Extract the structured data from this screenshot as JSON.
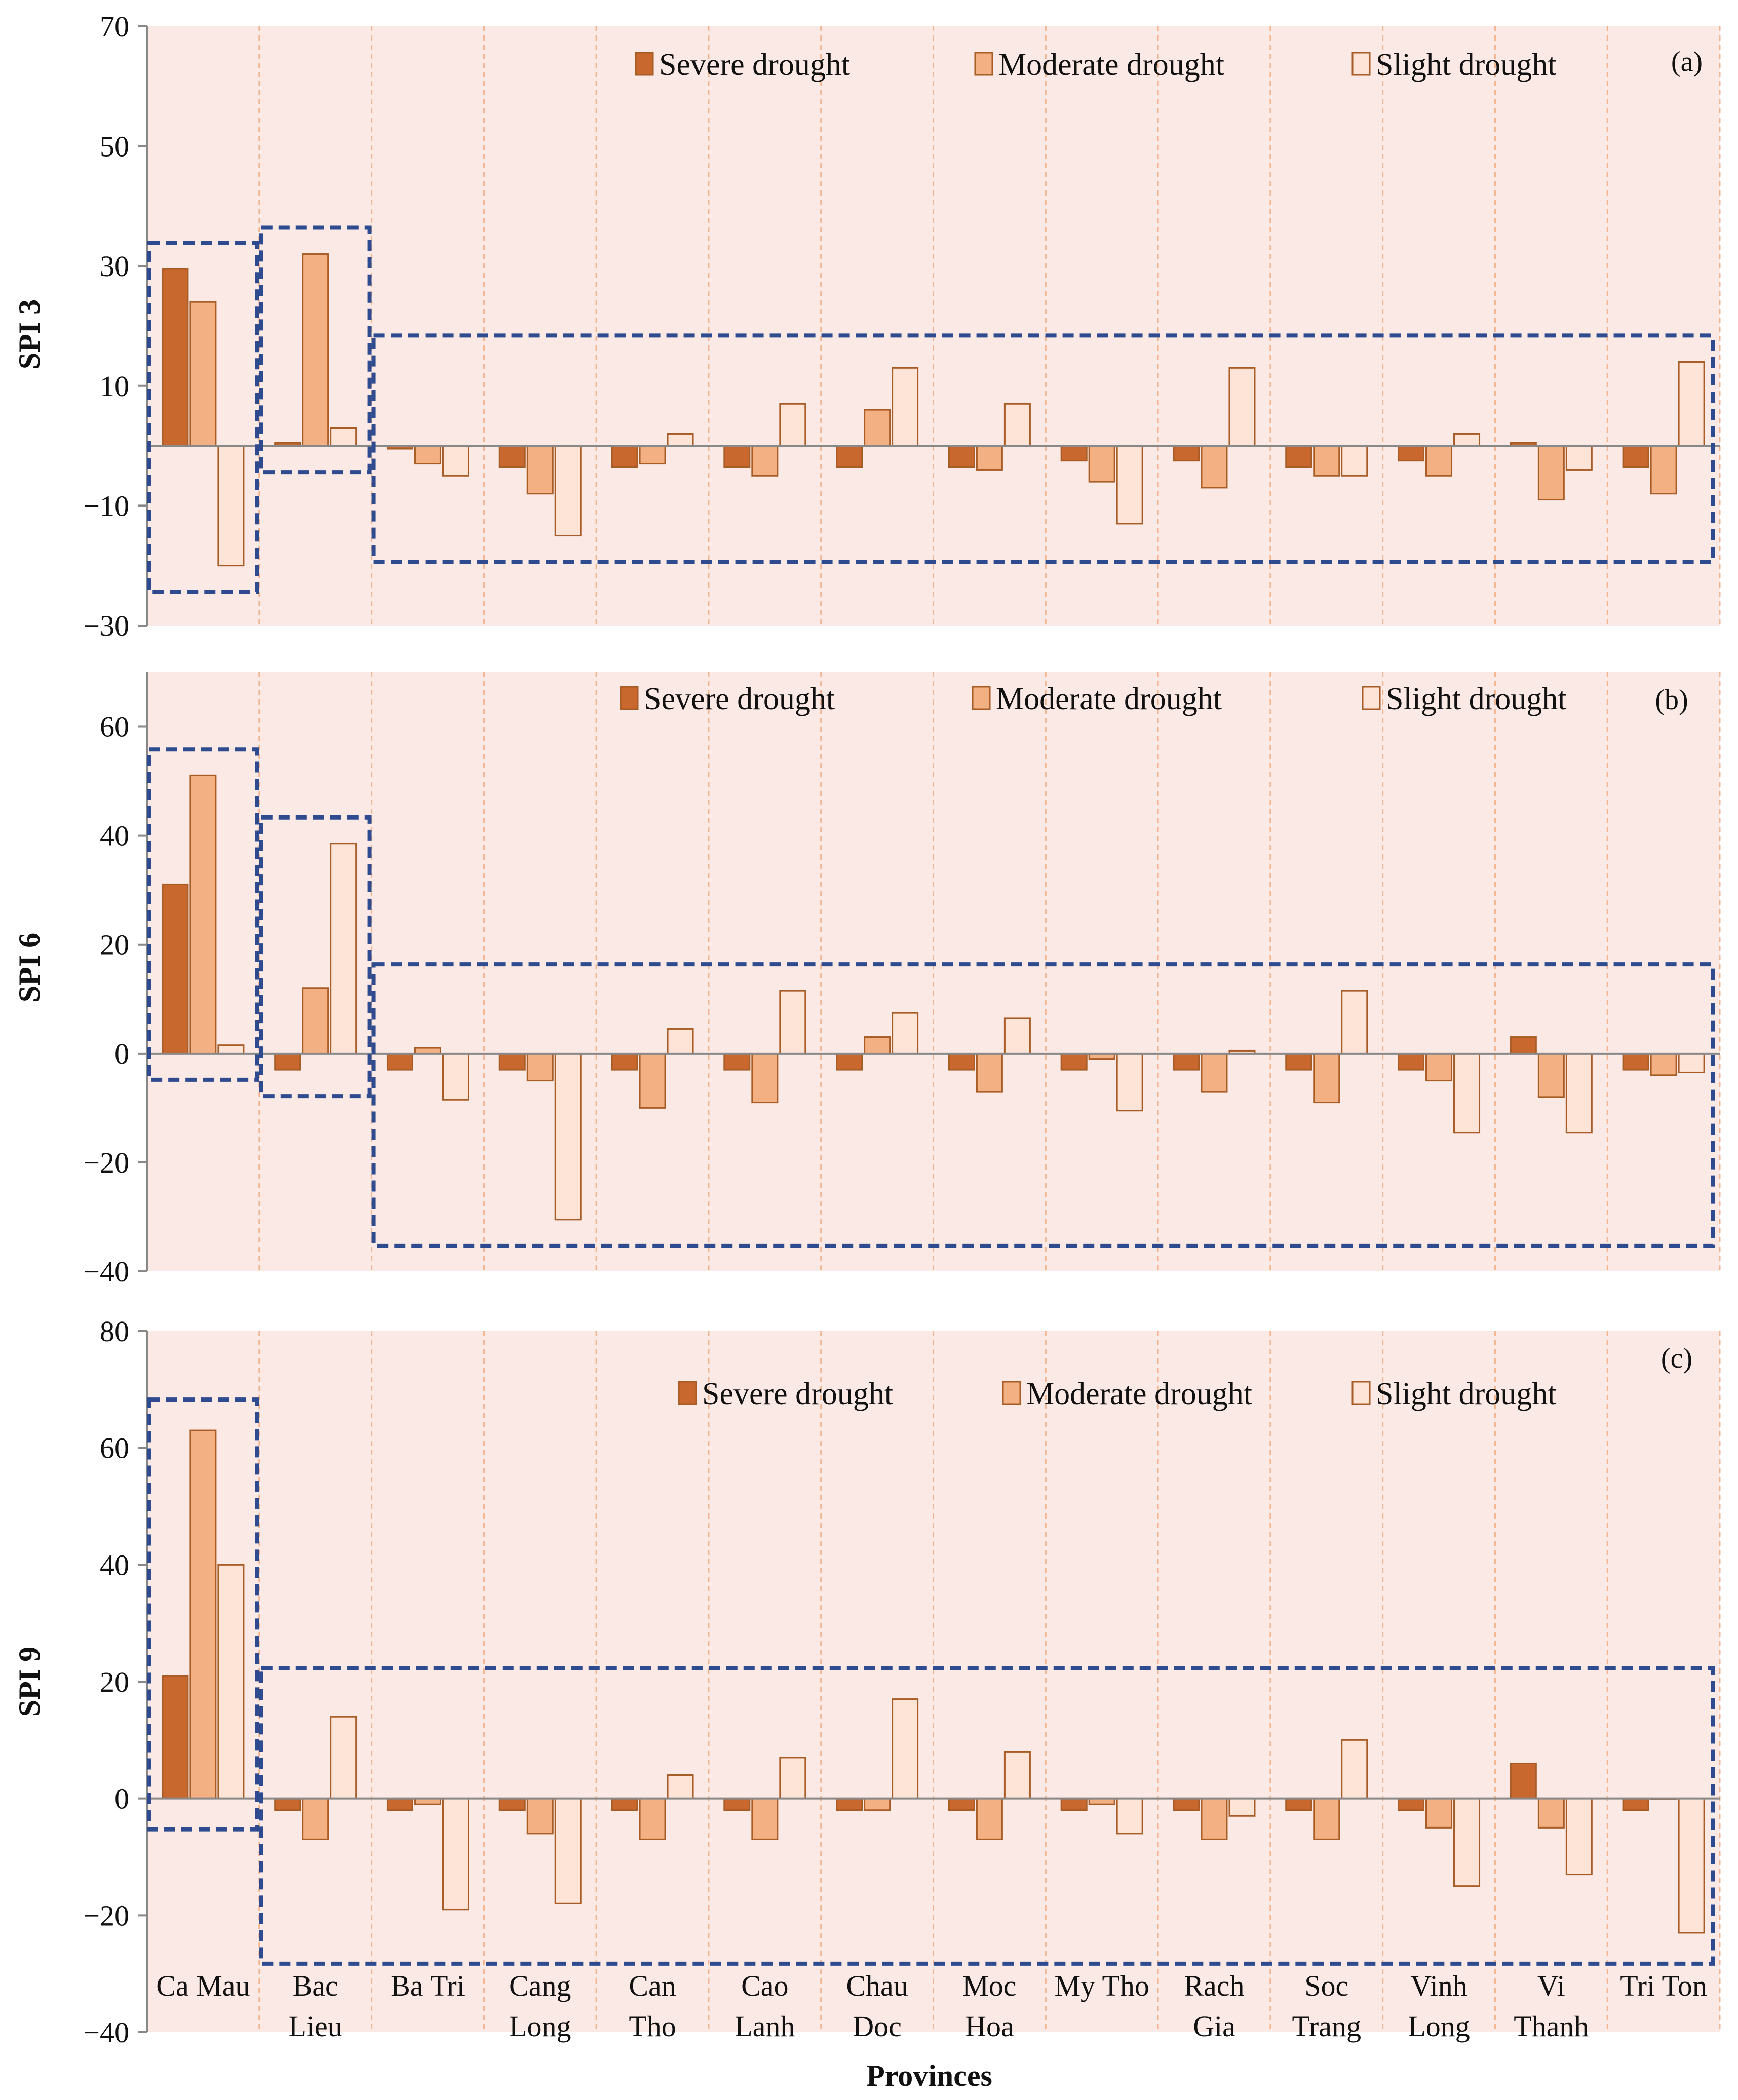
{
  "colors": {
    "plot_bg": "#fbe9e5",
    "severe": "#c8672e",
    "moderate": "#f3b083",
    "slight": "#fde4d7",
    "bar_stroke": "#a85c26",
    "highlight_box": "#2e4b8f",
    "separator": "#f3b58f",
    "axis": "#888888"
  },
  "x_axis_title": "Provinces",
  "provinces": [
    [
      "Ca Mau"
    ],
    [
      "Bac",
      "Lieu"
    ],
    [
      "Ba Tri"
    ],
    [
      "Cang",
      "Long"
    ],
    [
      "Can",
      "Tho"
    ],
    [
      "Cao",
      "Lanh"
    ],
    [
      "Chau",
      "Doc"
    ],
    [
      "Moc",
      "Hoa"
    ],
    [
      "My Tho"
    ],
    [
      "Rach",
      "Gia"
    ],
    [
      "Soc",
      "Trang"
    ],
    [
      "Vinh",
      "Long"
    ],
    [
      "Vi",
      "Thanh"
    ],
    [
      "Tri Ton"
    ]
  ],
  "chart_data": [
    {
      "type": "bar",
      "panel_label": "(a)",
      "ylabel": "SPI 3",
      "ylim": [
        -30,
        70
      ],
      "yticks": [
        -30,
        -10,
        10,
        30,
        50,
        70
      ],
      "categories": [
        "Ca Mau",
        "Bac Lieu",
        "Ba Tri",
        "Cang Long",
        "Can Tho",
        "Cao Lanh",
        "Chau Doc",
        "Moc Hoa",
        "My Tho",
        "Rach Gia",
        "Soc Trang",
        "Vinh Long",
        "Vi Thanh",
        "Tri Ton"
      ],
      "series": [
        {
          "name": "Severe drought",
          "values": [
            29.5,
            0.5,
            -0.5,
            -3.5,
            -3.5,
            -3.5,
            -3.5,
            -3.5,
            -2.5,
            -2.5,
            -3.5,
            -2.5,
            0.5,
            -3.5
          ]
        },
        {
          "name": "Moderate drought",
          "values": [
            24,
            32,
            -3,
            -8,
            -3,
            -5,
            6,
            -4,
            -6,
            -7,
            -5,
            -5,
            -9,
            -8
          ]
        },
        {
          "name": "Slight drought",
          "values": [
            -20,
            3,
            -5,
            -15,
            2,
            7,
            13,
            7,
            -13,
            13,
            -5,
            2,
            -4,
            14
          ]
        }
      ],
      "highlight_groups": [
        [
          0,
          0
        ],
        [
          1,
          1
        ],
        [
          2,
          13
        ]
      ]
    },
    {
      "type": "bar",
      "panel_label": "(b)",
      "ylabel": "SPI 6",
      "ylim": [
        -40,
        70
      ],
      "yticks": [
        -40,
        -20,
        0,
        20,
        40,
        60
      ],
      "categories": [
        "Ca Mau",
        "Bac Lieu",
        "Ba Tri",
        "Cang Long",
        "Can Tho",
        "Cao Lanh",
        "Chau Doc",
        "Moc Hoa",
        "My Tho",
        "Rach Gia",
        "Soc Trang",
        "Vinh Long",
        "Vi Thanh",
        "Tri Ton"
      ],
      "series": [
        {
          "name": "Severe drought",
          "values": [
            31,
            -3,
            -3,
            -3,
            -3,
            -3,
            -3,
            -3,
            -3,
            -3,
            -3,
            -3,
            3,
            -3
          ]
        },
        {
          "name": "Moderate drought",
          "values": [
            51,
            12,
            1,
            -5,
            -10,
            -9,
            3,
            -7,
            -1,
            -7,
            -9,
            -5,
            -8,
            -4
          ]
        },
        {
          "name": "Slight drought",
          "values": [
            1.5,
            38.5,
            -8.5,
            -30.5,
            4.5,
            11.5,
            7.5,
            6.5,
            -10.5,
            0.5,
            11.5,
            -14.5,
            -14.5,
            -3.5
          ]
        }
      ],
      "highlight_groups": [
        [
          0,
          0
        ],
        [
          1,
          1
        ],
        [
          2,
          13
        ]
      ]
    },
    {
      "type": "bar",
      "panel_label": "(c)",
      "ylabel": "SPI 9",
      "ylim": [
        -40,
        80
      ],
      "yticks": [
        -40,
        -20,
        0,
        20,
        40,
        60,
        80
      ],
      "categories": [
        "Ca Mau",
        "Bac Lieu",
        "Ba Tri",
        "Cang Long",
        "Can Tho",
        "Cao Lanh",
        "Chau Doc",
        "Moc Hoa",
        "My Tho",
        "Rach Gia",
        "Soc Trang",
        "Vinh Long",
        "Vi Thanh",
        "Tri Ton"
      ],
      "series": [
        {
          "name": "Severe drought",
          "values": [
            21,
            -2,
            -2,
            -2,
            -2,
            -2,
            -2,
            -2,
            -2,
            -2,
            -2,
            -2,
            6,
            -2
          ]
        },
        {
          "name": "Moderate drought",
          "values": [
            63,
            -7,
            -1,
            -6,
            -7,
            -7,
            -2,
            -7,
            -1,
            -7,
            -7,
            -5,
            -5,
            0
          ]
        },
        {
          "name": "Slight drought",
          "values": [
            40,
            14,
            -19,
            -18,
            4,
            7,
            17,
            8,
            -6,
            -3,
            10,
            -15,
            -13,
            -23
          ]
        }
      ],
      "highlight_groups": [
        [
          0,
          0
        ],
        [
          1,
          13
        ]
      ]
    }
  ]
}
